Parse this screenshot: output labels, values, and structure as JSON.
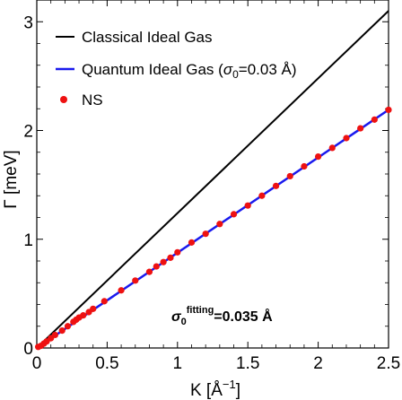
{
  "chart_data": {
    "type": "line",
    "xlabel": "K [Å",
    "xlabel_sup": "−1",
    "xlabel_end": "]",
    "ylabel": "Γ [meV]",
    "xlim": [
      0,
      2.5
    ],
    "ylim": [
      0,
      3.2
    ],
    "x_ticks": [
      "0",
      "0.5",
      "1",
      "1.5",
      "2",
      "2.5"
    ],
    "y_ticks": [
      "0",
      "1",
      "2",
      "3"
    ],
    "legend_position": "top-left",
    "series": [
      {
        "name": "Classical Ideal Gas",
        "style": "line",
        "color": "#000000",
        "x": [
          0,
          2.5
        ],
        "y": [
          0,
          3.1
        ]
      },
      {
        "name_prefix": "Quantum Ideal Gas (",
        "name_sigma": "σ",
        "name_sub": "0",
        "name_suffix": "=0.03 Å)",
        "style": "line",
        "color": "#1a1aee",
        "x": [
          0,
          2.5
        ],
        "y": [
          0,
          2.19
        ]
      },
      {
        "name": "NS",
        "style": "scatter",
        "color": "#ee1111",
        "x": [
          0.01,
          0.03,
          0.05,
          0.07,
          0.1,
          0.13,
          0.18,
          0.22,
          0.26,
          0.28,
          0.3,
          0.33,
          0.37,
          0.4,
          0.48,
          0.6,
          0.7,
          0.8,
          0.85,
          0.9,
          0.95,
          1.0,
          1.1,
          1.2,
          1.3,
          1.4,
          1.5,
          1.6,
          1.7,
          1.8,
          1.9,
          2.0,
          2.1,
          2.2,
          2.3,
          2.4,
          2.5
        ],
        "y": [
          0.01,
          0.02,
          0.04,
          0.06,
          0.09,
          0.12,
          0.16,
          0.2,
          0.24,
          0.26,
          0.28,
          0.3,
          0.33,
          0.36,
          0.43,
          0.53,
          0.62,
          0.7,
          0.75,
          0.79,
          0.83,
          0.88,
          0.97,
          1.05,
          1.14,
          1.23,
          1.31,
          1.4,
          1.49,
          1.58,
          1.67,
          1.76,
          1.84,
          1.93,
          2.02,
          2.1,
          2.19
        ]
      }
    ],
    "annotation": {
      "sigma": "σ",
      "sub": "0",
      "sup": "fitting",
      "value": "=0.035 Å"
    }
  }
}
